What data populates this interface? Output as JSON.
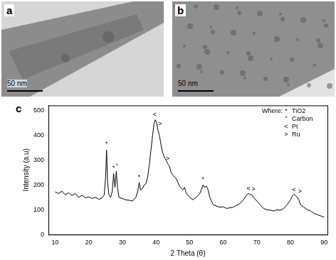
{
  "panels": [
    {
      "label": "a",
      "scale_bar": "50 nm"
    },
    {
      "label": "b",
      "scale_bar": "50 nm"
    }
  ],
  "chart_data": {
    "label": "c",
    "type": "line",
    "x_label": "2 Theta (θ)",
    "y_label": "Intensity (a.u)",
    "xlim": [
      8,
      91
    ],
    "xticks": [
      10,
      20,
      30,
      40,
      50,
      60,
      70,
      80,
      90
    ],
    "ylim": [
      0,
      520
    ],
    "yticks": [
      0,
      100,
      200,
      300,
      400,
      500
    ],
    "grid": false,
    "color": "#000000",
    "legend": "top-right",
    "legend_title": "Where:",
    "phases": [
      {
        "name": "TiO2",
        "symbol": "*"
      },
      {
        "name": "Carbon",
        "symbol": "°"
      },
      {
        "name": "Pt",
        "symbol": "<"
      },
      {
        "name": "Ru",
        "symbol": ">"
      }
    ],
    "x": [
      10,
      11,
      12,
      13,
      14,
      15,
      16,
      17,
      18,
      19,
      20,
      21,
      22,
      23,
      24,
      24.6,
      25,
      25.3,
      25.6,
      26,
      26.5,
      27,
      27.4,
      27.8,
      28.2,
      28.6,
      29,
      30,
      31,
      32,
      33,
      34,
      34.6,
      35,
      35.4,
      36,
      36.5,
      37,
      37.5,
      38,
      38.5,
      39,
      39.4,
      39.8,
      40.2,
      40.6,
      41,
      41.5,
      42,
      42.5,
      43,
      43.5,
      44,
      44.5,
      45,
      46,
      47,
      48,
      48.5,
      49,
      50,
      51,
      52,
      53,
      53.6,
      54,
      54.4,
      55,
      55.5,
      56,
      57,
      58,
      59,
      60,
      61,
      62,
      63,
      64,
      65,
      66,
      67,
      67.5,
      68,
      68.5,
      69,
      70,
      71,
      72,
      73,
      74,
      75,
      76,
      77,
      78,
      79,
      80,
      80.5,
      81,
      81.5,
      82,
      82.5,
      83,
      84,
      85,
      86,
      87,
      88,
      89,
      90
    ],
    "values": [
      172,
      165,
      175,
      160,
      168,
      158,
      165,
      150,
      158,
      148,
      152,
      145,
      150,
      142,
      148,
      160,
      230,
      340,
      210,
      160,
      150,
      175,
      245,
      190,
      255,
      185,
      150,
      145,
      140,
      138,
      135,
      150,
      175,
      210,
      180,
      185,
      200,
      205,
      230,
      280,
      340,
      400,
      445,
      462,
      450,
      420,
      400,
      360,
      330,
      310,
      300,
      285,
      275,
      250,
      240,
      225,
      195,
      180,
      190,
      165,
      150,
      140,
      150,
      165,
      185,
      200,
      190,
      195,
      180,
      150,
      120,
      115,
      110,
      112,
      105,
      108,
      110,
      118,
      125,
      140,
      160,
      165,
      162,
      160,
      150,
      135,
      120,
      105,
      100,
      98,
      95,
      100,
      98,
      105,
      120,
      140,
      155,
      162,
      158,
      150,
      140,
      120,
      110,
      100,
      95,
      85,
      80,
      75,
      70
    ],
    "annotations": [
      {
        "x": 25.3,
        "y": 365,
        "label": "*"
      },
      {
        "x": 27.4,
        "y": 268,
        "label": "*"
      },
      {
        "x": 28.4,
        "y": 275,
        "label": "°"
      },
      {
        "x": 35,
        "y": 232,
        "label": "*"
      },
      {
        "x": 39.6,
        "y": 482,
        "label": "<"
      },
      {
        "x": 41.2,
        "y": 445,
        "label": ">"
      },
      {
        "x": 43.5,
        "y": 305,
        "label": ">"
      },
      {
        "x": 54,
        "y": 222,
        "label": "*"
      },
      {
        "x": 67.5,
        "y": 185,
        "label": "<"
      },
      {
        "x": 69,
        "y": 182,
        "label": ">"
      },
      {
        "x": 81,
        "y": 180,
        "label": "<"
      },
      {
        "x": 82.8,
        "y": 175,
        "label": ">"
      }
    ]
  }
}
